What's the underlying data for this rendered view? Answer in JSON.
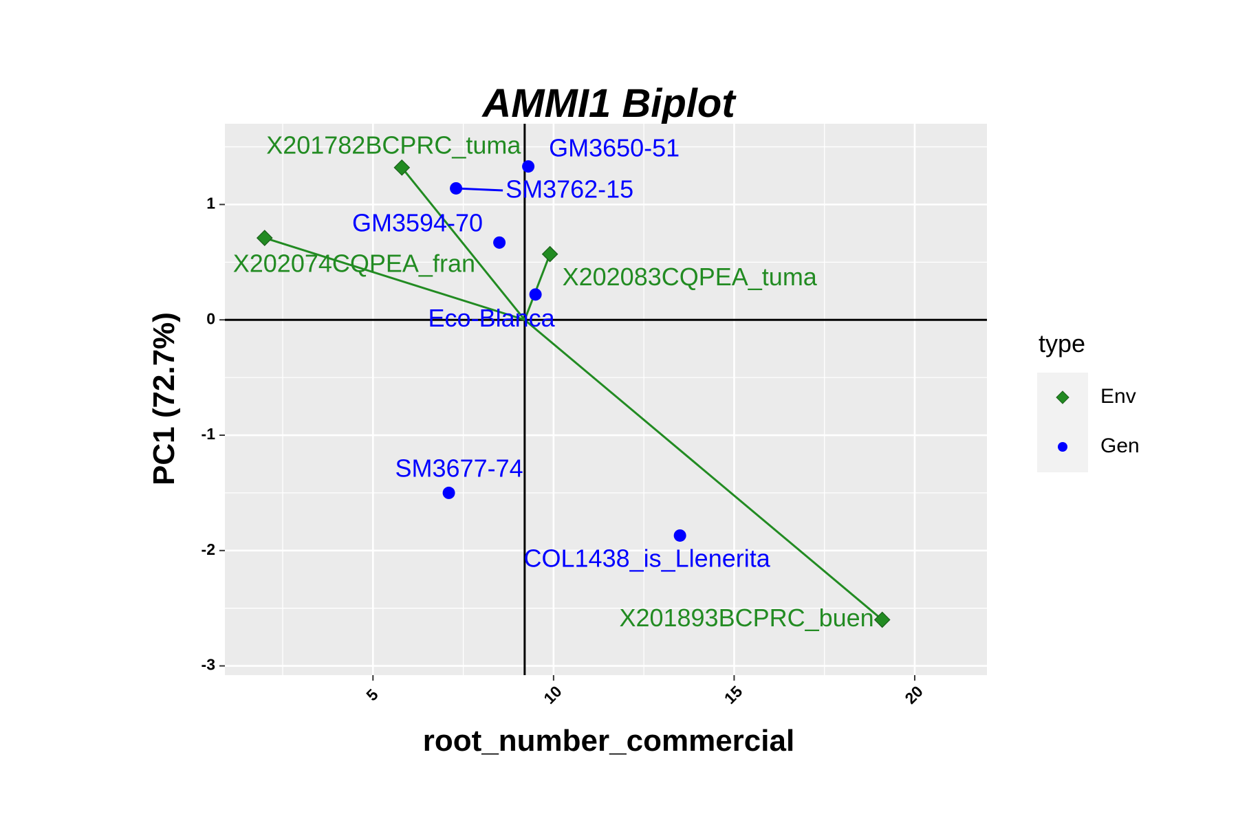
{
  "chart_data": {
    "type": "scatter",
    "title": "AMMI1 Biplot",
    "xlabel": "root_number_commercial",
    "ylabel": "PC1 (72.7%)",
    "xlim": [
      0.9,
      22.0
    ],
    "ylim": [
      -3.08,
      1.7
    ],
    "x_ticks": [
      5,
      10,
      15,
      20
    ],
    "y_ticks": [
      1,
      0,
      -1,
      -2,
      -3
    ],
    "grid": true,
    "reference_lines": {
      "x": 9.2,
      "y": 0
    },
    "legend": {
      "title": "type",
      "position": "right",
      "entries": [
        "Env",
        "Gen"
      ]
    },
    "colors": {
      "Env": "#228B22",
      "Gen": "#0000FF",
      "panel": "#EBEBEB",
      "grid": "#FFFFFF",
      "reference": "#000000"
    },
    "series": [
      {
        "name": "Env",
        "marker": "diamond",
        "points": [
          {
            "label": "X201782BCPRC_tuma",
            "x": 5.8,
            "y": 1.32
          },
          {
            "label": "X202074CQPEA_fran",
            "x": 2.0,
            "y": 0.71
          },
          {
            "label": "X202083CQPEA_tuma",
            "x": 9.9,
            "y": 0.57
          },
          {
            "label": "X201893BCPRC_buen",
            "x": 19.1,
            "y": -2.6
          }
        ]
      },
      {
        "name": "Gen",
        "marker": "circle",
        "points": [
          {
            "label": "GM3650-51",
            "x": 9.3,
            "y": 1.33
          },
          {
            "label": "SM3762-15",
            "x": 7.3,
            "y": 1.14
          },
          {
            "label": "GM3594-70",
            "x": 8.5,
            "y": 0.67
          },
          {
            "label": "Eco-Blanca",
            "x": 9.5,
            "y": 0.22
          },
          {
            "label": "SM3677-74",
            "x": 7.1,
            "y": -1.5
          },
          {
            "label": "COL1438_is_Llenerita",
            "x": 13.5,
            "y": -1.87
          }
        ]
      }
    ]
  }
}
